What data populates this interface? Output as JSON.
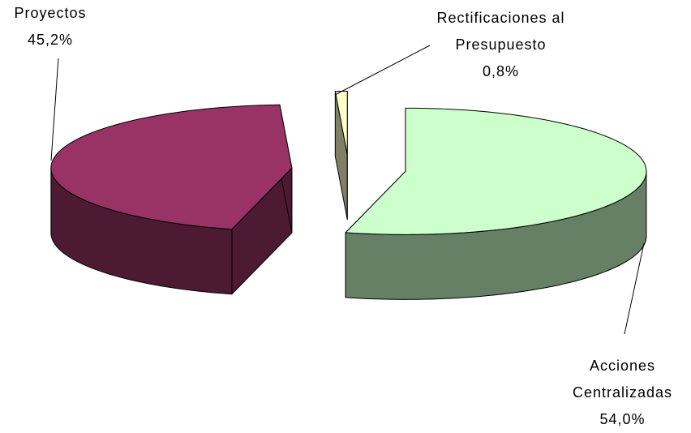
{
  "chart_data": {
    "type": "pie3d",
    "categories": [
      "Acciones Centralizadas",
      "Proyectos",
      "Rectificaciones al Presupuesto"
    ],
    "values": [
      54.0,
      45.2,
      0.8
    ],
    "value_labels": [
      "54,0%",
      "45,2%",
      "0,8%"
    ],
    "colors": [
      "#ccffcc",
      "#993366",
      "#ffffcc"
    ]
  }
}
